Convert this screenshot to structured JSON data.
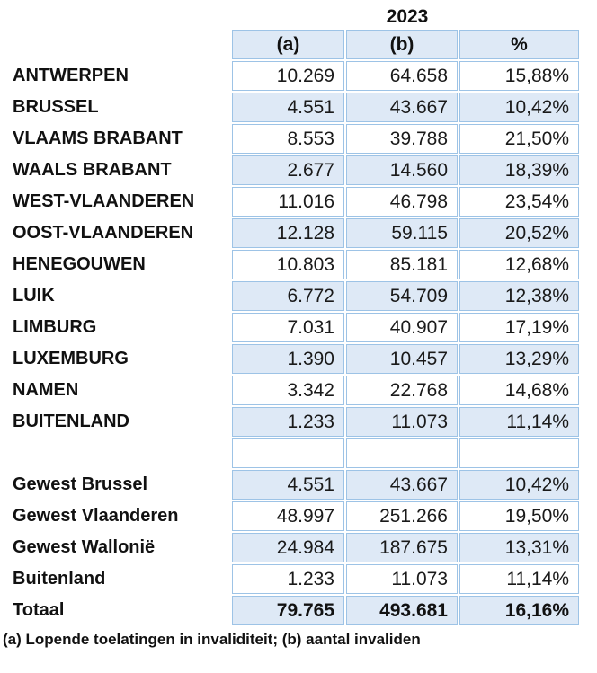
{
  "title": "2023",
  "table": {
    "columns": [
      "(a)",
      "(b)",
      "%"
    ],
    "rows": [
      {
        "label": "ANTWERPEN",
        "a": "10.269",
        "b": "64.658",
        "pct": "15,88%",
        "shaded": false,
        "bold": false
      },
      {
        "label": "BRUSSEL",
        "a": "4.551",
        "b": "43.667",
        "pct": "10,42%",
        "shaded": true,
        "bold": false
      },
      {
        "label": "VLAAMS BRABANT",
        "a": "8.553",
        "b": "39.788",
        "pct": "21,50%",
        "shaded": false,
        "bold": false
      },
      {
        "label": "WAALS BRABANT",
        "a": "2.677",
        "b": "14.560",
        "pct": "18,39%",
        "shaded": true,
        "bold": false
      },
      {
        "label": "WEST-VLAANDEREN",
        "a": "11.016",
        "b": "46.798",
        "pct": "23,54%",
        "shaded": false,
        "bold": false
      },
      {
        "label": "OOST-VLAANDEREN",
        "a": "12.128",
        "b": "59.115",
        "pct": "20,52%",
        "shaded": true,
        "bold": false
      },
      {
        "label": "HENEGOUWEN",
        "a": "10.803",
        "b": "85.181",
        "pct": "12,68%",
        "shaded": false,
        "bold": false
      },
      {
        "label": "LUIK",
        "a": "6.772",
        "b": "54.709",
        "pct": "12,38%",
        "shaded": true,
        "bold": false
      },
      {
        "label": "LIMBURG",
        "a": "7.031",
        "b": "40.907",
        "pct": "17,19%",
        "shaded": false,
        "bold": false
      },
      {
        "label": "LUXEMBURG",
        "a": "1.390",
        "b": "10.457",
        "pct": "13,29%",
        "shaded": true,
        "bold": false
      },
      {
        "label": "NAMEN",
        "a": "3.342",
        "b": "22.768",
        "pct": "14,68%",
        "shaded": false,
        "bold": false
      },
      {
        "label": "BUITENLAND",
        "a": "1.233",
        "b": "11.073",
        "pct": "11,14%",
        "shaded": true,
        "bold": false
      },
      {
        "label": "",
        "a": "",
        "b": "",
        "pct": "",
        "shaded": false,
        "bold": false
      },
      {
        "label": "Gewest Brussel",
        "a": "4.551",
        "b": "43.667",
        "pct": "10,42%",
        "shaded": true,
        "bold": false
      },
      {
        "label": "Gewest Vlaanderen",
        "a": "48.997",
        "b": "251.266",
        "pct": "19,50%",
        "shaded": false,
        "bold": false
      },
      {
        "label": "Gewest Wallonië",
        "a": "24.984",
        "b": "187.675",
        "pct": "13,31%",
        "shaded": true,
        "bold": false
      },
      {
        "label": "Buitenland",
        "a": "1.233",
        "b": "11.073",
        "pct": "11,14%",
        "shaded": false,
        "bold": false
      },
      {
        "label": "Totaal",
        "a": "79.765",
        "b": "493.681",
        "pct": "16,16%",
        "shaded": true,
        "bold": true
      }
    ]
  },
  "footnote": "(a) Lopende toelatingen in invaliditeit; (b) aantal invaliden",
  "colors": {
    "cell_fill": "#dee9f6",
    "cell_border": "#9dc3e6"
  }
}
